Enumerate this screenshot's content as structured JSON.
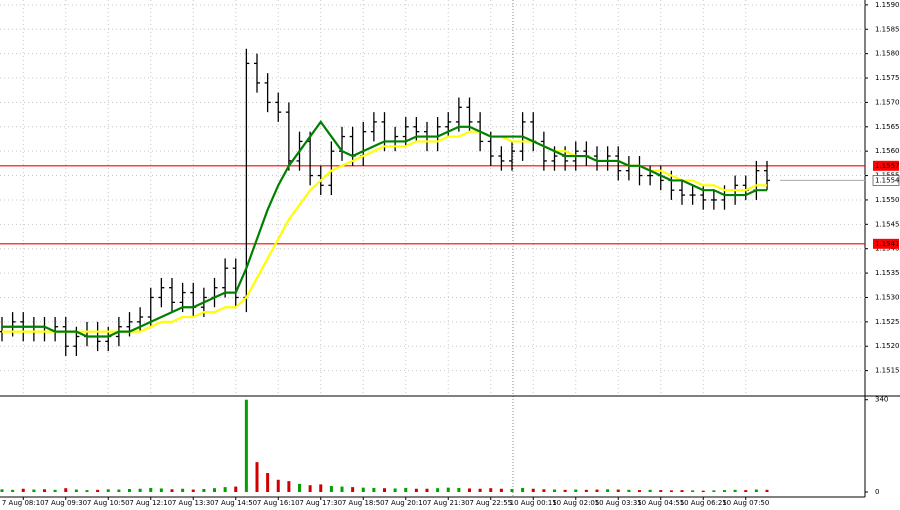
{
  "chart_data": [
    {
      "type": "candlestick",
      "color": "#000000",
      "grid": true,
      "categories": [
        null,
        null,
        "7 Aug 08:10",
        null,
        null,
        null,
        "7 Aug 09:30",
        null,
        null,
        null,
        "7 Aug 10:50",
        null,
        null,
        null,
        "7 Aug 12:10",
        null,
        null,
        null,
        "7 Aug 13:30",
        null,
        null,
        null,
        "7 Aug 14:50",
        null,
        null,
        null,
        "7 Aug 16:10",
        null,
        null,
        null,
        "7 Aug 17:30",
        null,
        null,
        null,
        "7 Aug 18:50",
        null,
        null,
        null,
        "7 Aug 20:10",
        null,
        null,
        null,
        "7 Aug 21:30",
        null,
        null,
        null,
        "7 Aug 22:55",
        null,
        null,
        null,
        "10 Aug 00:15",
        null,
        null,
        null,
        "10 Aug 02:05",
        null,
        null,
        null,
        "10 Aug 03:35",
        null,
        null,
        null,
        "10 Aug 04:55",
        null,
        null,
        null,
        "10 Aug 06:25",
        null,
        null,
        null,
        "10 Aug 07:50",
        null,
        null
      ],
      "open": [
        1.1523,
        1.1524,
        1.1525,
        1.1523,
        1.1524,
        1.1523,
        1.1524,
        1.152,
        1.1522,
        1.1523,
        1.1521,
        1.1522,
        1.1524,
        1.1525,
        1.1526,
        1.153,
        1.1532,
        1.1529,
        1.1531,
        1.1528,
        1.153,
        1.1532,
        1.1536,
        1.153,
        1.1578,
        1.1574,
        1.157,
        1.1568,
        1.1558,
        1.1562,
        1.1555,
        1.1553,
        1.156,
        1.1563,
        1.1559,
        1.1564,
        1.1566,
        1.1562,
        1.1563,
        1.1565,
        1.1564,
        1.1562,
        1.1565,
        1.1566,
        1.1569,
        1.1566,
        1.1562,
        1.1559,
        1.1558,
        1.156,
        1.1566,
        1.1562,
        1.1558,
        1.1559,
        1.1558,
        1.156,
        1.1559,
        1.1558,
        1.1559,
        1.1556,
        1.1557,
        1.1555,
        1.1555,
        1.1554,
        1.1552,
        1.1551,
        1.1551,
        1.155,
        1.155,
        1.1551,
        1.1553,
        1.1552,
        1.1556
      ],
      "high": [
        1.1526,
        1.1527,
        1.1527,
        1.1526,
        1.1526,
        1.1526,
        1.1526,
        1.1524,
        1.1525,
        1.1525,
        1.1524,
        1.1526,
        1.1527,
        1.1528,
        1.1532,
        1.1534,
        1.1534,
        1.1533,
        1.1533,
        1.1532,
        1.1534,
        1.1538,
        1.1538,
        1.1581,
        1.158,
        1.1576,
        1.1572,
        1.157,
        1.1564,
        1.1564,
        1.1557,
        1.1562,
        1.1565,
        1.1565,
        1.1566,
        1.1568,
        1.1568,
        1.1565,
        1.1567,
        1.1567,
        1.1566,
        1.1567,
        1.1568,
        1.1571,
        1.1571,
        1.1568,
        1.1564,
        1.1561,
        1.1562,
        1.1568,
        1.1568,
        1.1564,
        1.1561,
        1.1561,
        1.1562,
        1.1562,
        1.1561,
        1.1561,
        1.1561,
        1.1559,
        1.1559,
        1.1557,
        1.1557,
        1.1556,
        1.1554,
        1.1553,
        1.1553,
        1.1552,
        1.1553,
        1.1555,
        1.1555,
        1.1558,
        1.1558
      ],
      "low": [
        1.1521,
        1.1522,
        1.1521,
        1.1521,
        1.1521,
        1.1521,
        1.1518,
        1.1518,
        1.152,
        1.1519,
        1.1519,
        1.152,
        1.1522,
        1.1523,
        1.1524,
        1.1528,
        1.1527,
        1.1527,
        1.1526,
        1.1526,
        1.1528,
        1.153,
        1.1528,
        1.1527,
        1.1572,
        1.1568,
        1.1566,
        1.1556,
        1.1556,
        1.1553,
        1.1551,
        1.1551,
        1.1558,
        1.1557,
        1.1557,
        1.1562,
        1.156,
        1.156,
        1.1561,
        1.1562,
        1.156,
        1.156,
        1.1563,
        1.1564,
        1.1564,
        1.156,
        1.1557,
        1.1556,
        1.1556,
        1.1558,
        1.156,
        1.1556,
        1.1556,
        1.1556,
        1.1556,
        1.1557,
        1.1556,
        1.1556,
        1.1554,
        1.1554,
        1.1553,
        1.1553,
        1.1552,
        1.155,
        1.1549,
        1.1549,
        1.1548,
        1.1548,
        1.1548,
        1.1549,
        1.155,
        1.155,
        1.1552
      ],
      "close": [
        1.1524,
        1.1525,
        1.1523,
        1.1524,
        1.1523,
        1.1524,
        1.152,
        1.1522,
        1.1523,
        1.1521,
        1.1522,
        1.1524,
        1.1525,
        1.1526,
        1.153,
        1.1532,
        1.1529,
        1.1531,
        1.1528,
        1.153,
        1.1532,
        1.1536,
        1.153,
        1.1578,
        1.1574,
        1.157,
        1.1568,
        1.1558,
        1.1562,
        1.1555,
        1.1553,
        1.156,
        1.1563,
        1.1559,
        1.1564,
        1.1566,
        1.1562,
        1.1563,
        1.1565,
        1.1564,
        1.1562,
        1.1565,
        1.1566,
        1.1569,
        1.1566,
        1.1562,
        1.1559,
        1.1558,
        1.156,
        1.1566,
        1.1562,
        1.1558,
        1.1559,
        1.1558,
        1.156,
        1.1559,
        1.1558,
        1.1559,
        1.1556,
        1.1557,
        1.1555,
        1.1555,
        1.1554,
        1.1552,
        1.1551,
        1.1551,
        1.155,
        1.155,
        1.1551,
        1.1553,
        1.1552,
        1.1556,
        1.1554
      ],
      "series": [
        {
          "color": "#ffff00",
          "values": [
            1.1523,
            1.1523,
            1.1523,
            1.1523,
            1.1523,
            1.1523,
            1.1523,
            1.1523,
            1.1523,
            1.1523,
            1.1523,
            1.1523,
            1.1523,
            1.1523,
            1.1524,
            1.1525,
            1.1525,
            1.1526,
            1.1526,
            1.1527,
            1.1527,
            1.1528,
            1.1528,
            1.153,
            1.1534,
            1.1538,
            1.1542,
            1.1546,
            1.1549,
            1.1552,
            1.1554,
            1.1556,
            1.1557,
            1.1558,
            1.1559,
            1.156,
            1.1561,
            1.1561,
            1.1561,
            1.1562,
            1.1562,
            1.1562,
            1.1563,
            1.1563,
            1.1564,
            1.1564,
            1.1563,
            1.1563,
            1.1562,
            1.1562,
            1.1562,
            1.1561,
            1.156,
            1.156,
            1.1559,
            1.1559,
            1.1558,
            1.1558,
            1.1558,
            1.1557,
            1.1557,
            1.1556,
            1.1556,
            1.1555,
            1.1554,
            1.1554,
            1.1553,
            1.1553,
            1.1552,
            1.1552,
            1.1552,
            1.1553,
            1.1553
          ]
        },
        {
          "color": "#008000",
          "values": [
            1.1524,
            1.1524,
            1.1524,
            1.1524,
            1.1524,
            1.1523,
            1.1523,
            1.1523,
            1.1522,
            1.1522,
            1.1522,
            1.1523,
            1.1523,
            1.1524,
            1.1525,
            1.1526,
            1.1527,
            1.1528,
            1.1528,
            1.1529,
            1.153,
            1.1531,
            1.1531,
            1.1536,
            1.1542,
            1.1548,
            1.1553,
            1.1557,
            1.156,
            1.1563,
            1.1566,
            1.1563,
            1.156,
            1.1559,
            1.156,
            1.1561,
            1.1562,
            1.1562,
            1.1562,
            1.1563,
            1.1563,
            1.1563,
            1.1564,
            1.1565,
            1.1565,
            1.1564,
            1.1563,
            1.1563,
            1.1563,
            1.1563,
            1.1562,
            1.1561,
            1.156,
            1.1559,
            1.1559,
            1.1559,
            1.1558,
            1.1558,
            1.1558,
            1.1557,
            1.1557,
            1.1556,
            1.1555,
            1.1554,
            1.1554,
            1.1553,
            1.1552,
            1.1552,
            1.1551,
            1.1551,
            1.1551,
            1.1552,
            1.1552
          ]
        }
      ],
      "ylim": [
        1.151,
        1.1591
      ],
      "yticks": [
        1.1515,
        {
          "value": 1.152,
          "label": "1.1520"
        },
        1.1525,
        {
          "value": 1.153,
          "label": "1.1530"
        },
        1.1535,
        {
          "value": 1.154,
          "label": "1.1540"
        },
        1.1545,
        {
          "value": 1.155,
          "label": "1.1550"
        },
        1.1555,
        {
          "value": 1.156,
          "label": "1.1560"
        },
        1.1565,
        {
          "value": 1.157,
          "label": "1.1570"
        },
        1.1575,
        {
          "value": 1.158,
          "label": "1.1580"
        },
        1.1585,
        {
          "value": 1.159,
          "label": "1.1590"
        }
      ],
      "levels": [
        1.1557,
        1.1541
      ],
      "level_color": "#ff0000",
      "current_price": 1.1554
    },
    {
      "type": "bar",
      "up_color": "#00a000",
      "down_color": "#d00000",
      "values": [
        10,
        8,
        12,
        9,
        10,
        8,
        14,
        9,
        7,
        8,
        10,
        9,
        11,
        12,
        15,
        13,
        10,
        12,
        9,
        11,
        14,
        18,
        20,
        340,
        110,
        70,
        45,
        40,
        30,
        25,
        28,
        22,
        20,
        18,
        16,
        15,
        14,
        13,
        15,
        12,
        12,
        14,
        16,
        15,
        13,
        12,
        14,
        12,
        11,
        15,
        12,
        10,
        9,
        8,
        9,
        8,
        9,
        10,
        9,
        8,
        7,
        8,
        7,
        6,
        7,
        6,
        5,
        6,
        7,
        8,
        7,
        9,
        8
      ],
      "ylim": [
        0,
        350
      ],
      "yticks": [
        0,
        340
      ]
    }
  ]
}
